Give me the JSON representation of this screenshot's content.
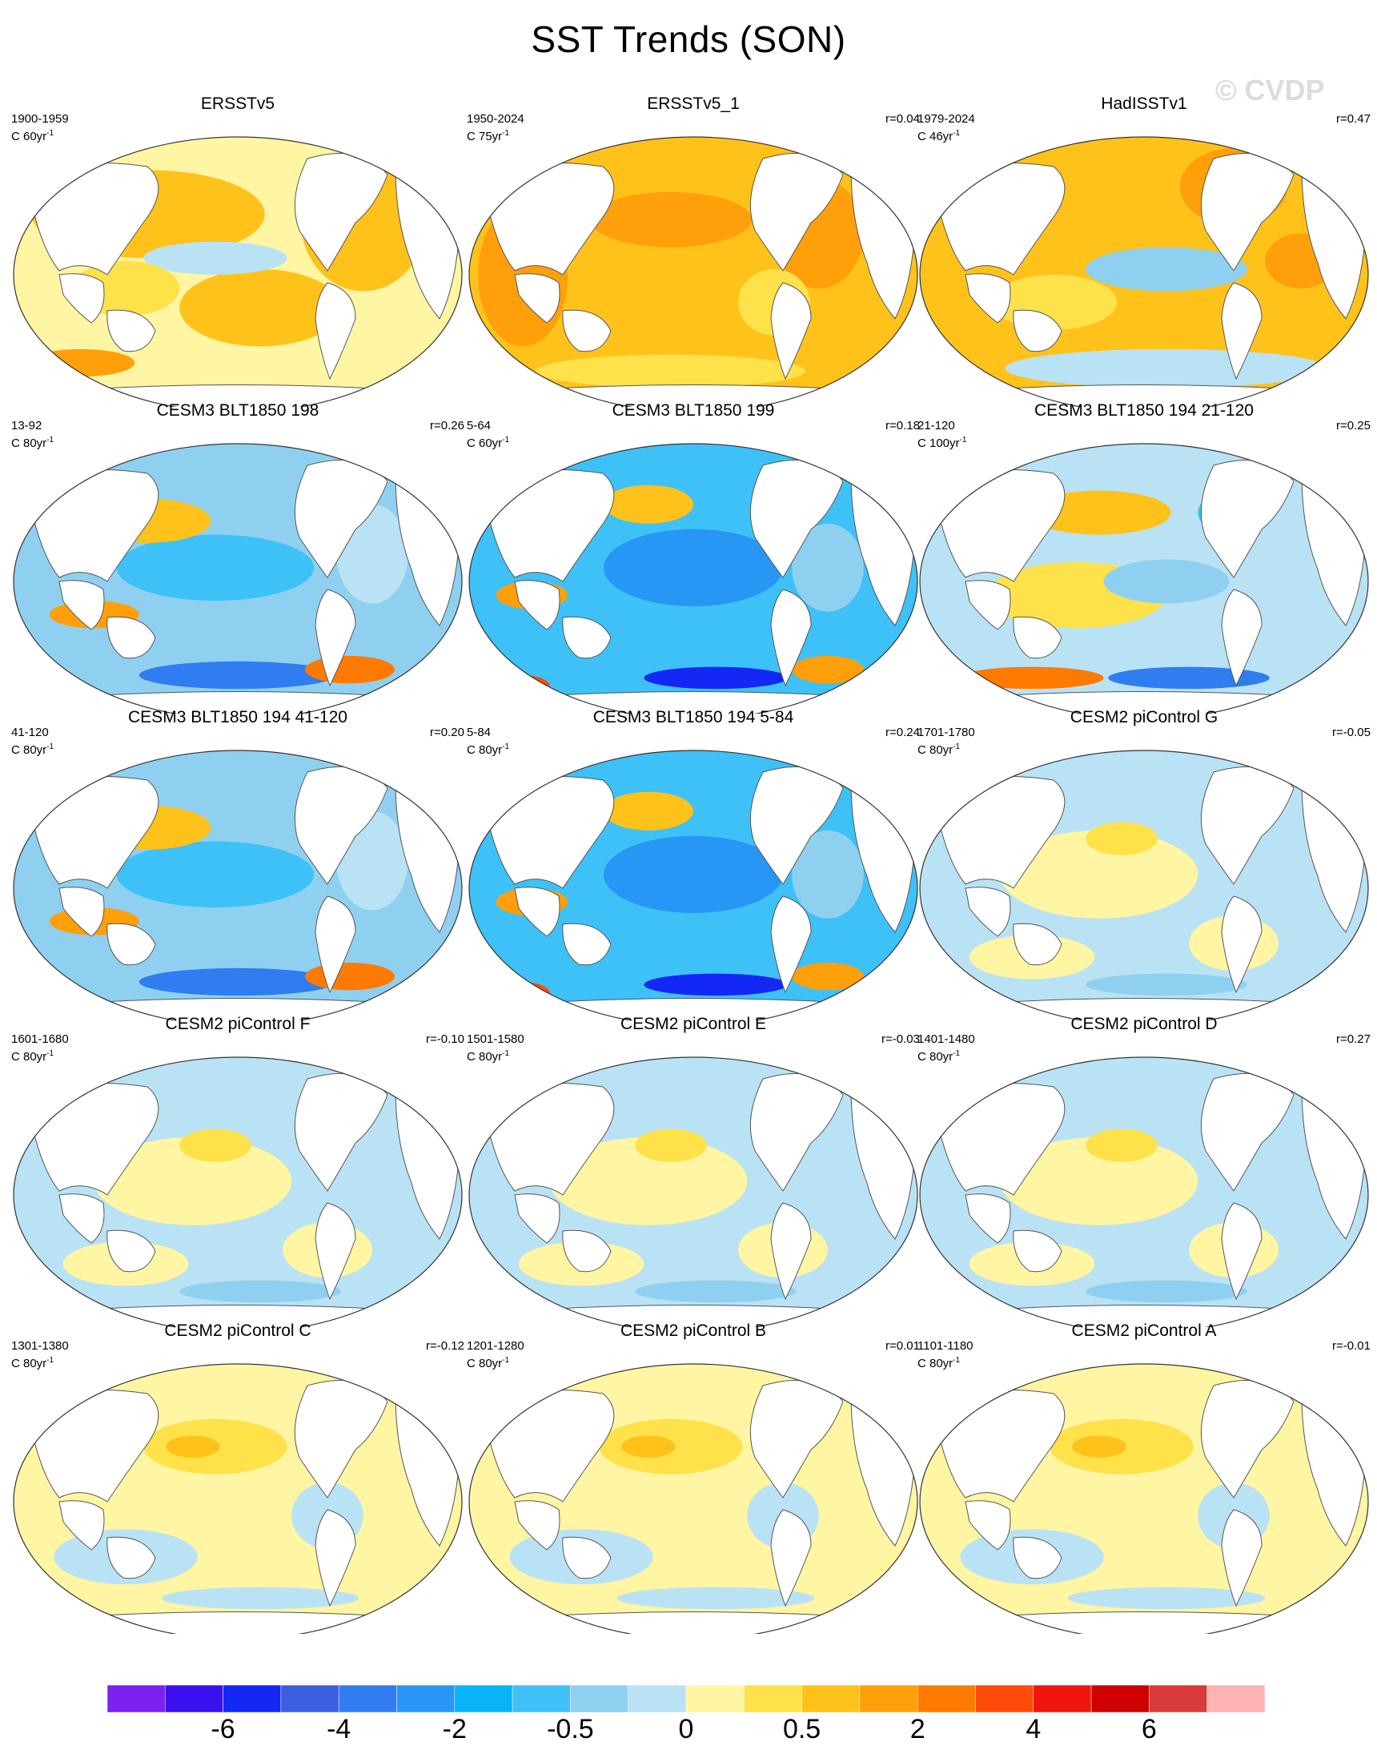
{
  "title": "SST Trends (SON)",
  "watermark": "© CVDP",
  "panels": [
    {
      "title": "ERSSTv5",
      "period": "1900-1959",
      "scale_value": "60",
      "corr": "",
      "pattern": "obs-warm"
    },
    {
      "title": "ERSSTv5_1",
      "period": "1950-2024",
      "scale_value": "75",
      "corr": "r=0.04",
      "pattern": "obs-hot"
    },
    {
      "title": "HadISSTv1",
      "period": "1979-2024",
      "scale_value": "46",
      "corr": "r=0.47",
      "pattern": "obs-lanina"
    },
    {
      "title": "CESM3 BLT1850 198",
      "period": "13-92",
      "scale_value": "80",
      "corr": "r=0.26",
      "pattern": "model-cool"
    },
    {
      "title": "CESM3 BLT1850 199",
      "period": "5-64",
      "scale_value": "60",
      "corr": "r=0.18",
      "pattern": "model-cold"
    },
    {
      "title": "CESM3 BLT1850 194 21-120",
      "period": "21-120",
      "scale_value": "100",
      "corr": "r=0.25",
      "pattern": "model-mixed"
    },
    {
      "title": "CESM3 BLT1850 194 41-120",
      "period": "41-120",
      "scale_value": "80",
      "corr": "r=0.20",
      "pattern": "model-cool"
    },
    {
      "title": "CESM3 BLT1850 194 5-84",
      "period": "5-84",
      "scale_value": "80",
      "corr": "r=0.24",
      "pattern": "model-cold"
    },
    {
      "title": "CESM2 piControl G",
      "period": "1701-1780",
      "scale_value": "80",
      "corr": "r=-0.05",
      "pattern": "pi-neutral"
    },
    {
      "title": "CESM2 piControl F",
      "period": "1601-1680",
      "scale_value": "80",
      "corr": "r=-0.10",
      "pattern": "pi-neutral"
    },
    {
      "title": "CESM2 piControl E",
      "period": "1501-1580",
      "scale_value": "80",
      "corr": "r=-0.03",
      "pattern": "pi-neutral"
    },
    {
      "title": "CESM2 piControl D",
      "period": "1401-1480",
      "scale_value": "80",
      "corr": "r=0.27",
      "pattern": "pi-neutral"
    },
    {
      "title": "CESM2 piControl C",
      "period": "1301-1380",
      "scale_value": "80",
      "corr": "r=-0.12",
      "pattern": "pi-warmish"
    },
    {
      "title": "CESM2 piControl B",
      "period": "1201-1280",
      "scale_value": "80",
      "corr": "r=0.01",
      "pattern": "pi-warmish"
    },
    {
      "title": "CESM2 piControl A",
      "period": "1101-1180",
      "scale_value": "80",
      "corr": "r=-0.01",
      "pattern": "pi-warmish"
    }
  ],
  "scale_prefix": "C",
  "scale_unit": "yr",
  "scale_exp": "-1",
  "colorbar": {
    "colors": [
      "#7b22f0",
      "#3b10ee",
      "#1428f5",
      "#3a5fe0",
      "#2f7df0",
      "#2896f5",
      "#08b4f8",
      "#3dc1f7",
      "#8fd0f0",
      "#b9e2f5",
      "#fff5a3",
      "#ffe14a",
      "#ffc21a",
      "#ff9f0a",
      "#ff7a00",
      "#ff4a0a",
      "#f0160e",
      "#d00000",
      "#d93a3a",
      "#ffb3b3"
    ],
    "labels": [
      "-6",
      "-4",
      "-2",
      "-0.5",
      "0",
      "0.5",
      "2",
      "4",
      "6"
    ]
  }
}
